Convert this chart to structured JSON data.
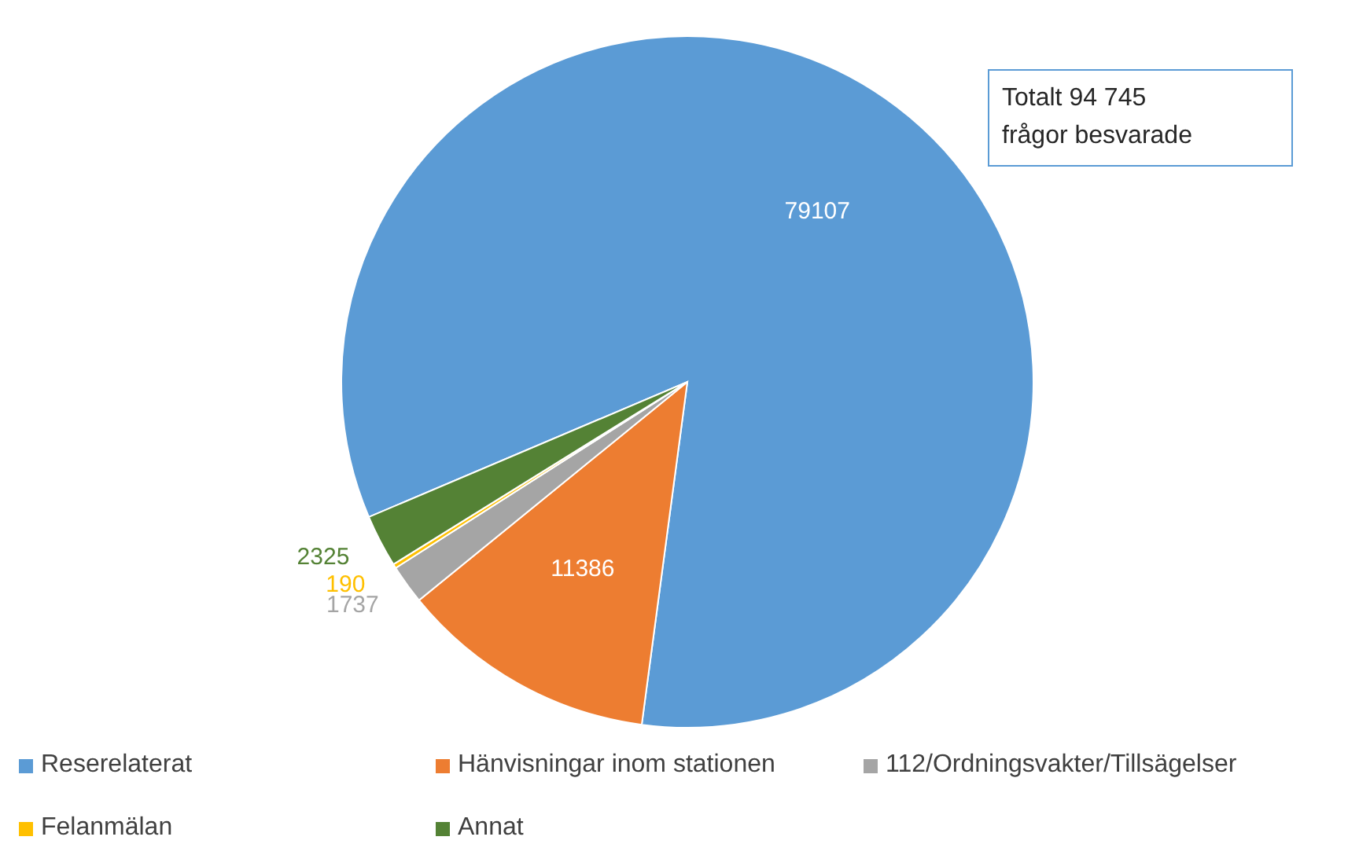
{
  "chart_data": {
    "type": "pie",
    "categories": [
      "Reserelaterat",
      "Hänvisningar inom stationen",
      "112/Ordningsvakter/Tillsägelser",
      "Felanmälan",
      "Annat"
    ],
    "values": [
      79107,
      11386,
      1737,
      190,
      2325
    ],
    "colors": [
      "#5b9bd5",
      "#ed7d31",
      "#a5a5a5",
      "#ffc000",
      "#548235"
    ],
    "data_labels": true,
    "legend": "bottom",
    "annotations": [
      "Totalt 94 745\nfrågor besvarade"
    ]
  }
}
